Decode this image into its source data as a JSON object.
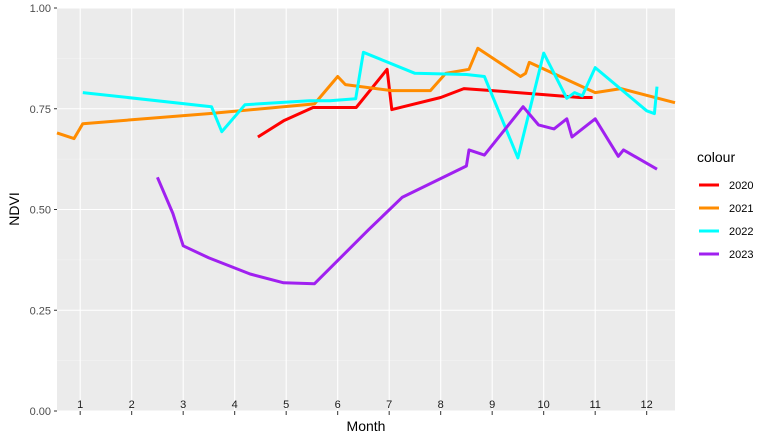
{
  "chart_data": {
    "type": "line",
    "xlabel": "Month",
    "ylabel": "NDVI",
    "xlim": [
      0.55,
      12.55
    ],
    "ylim": [
      0,
      1
    ],
    "y_ticks": [
      "0.00",
      "0.25",
      "0.50",
      "0.75",
      "1.00"
    ],
    "y_tick_values": [
      0,
      0.25,
      0.5,
      0.75,
      1.0
    ],
    "months": [
      "1",
      "2",
      "3",
      "4",
      "5",
      "6",
      "7",
      "8",
      "9",
      "10",
      "11",
      "12"
    ],
    "grid": true,
    "legend_title": "colour",
    "legend_position": "right",
    "series": [
      {
        "name": "2020",
        "color": "#ff0000",
        "x": [
          4.45,
          4.95,
          5.52,
          6.36,
          6.96,
          7.05,
          8.0,
          8.45,
          9.0,
          10.0,
          10.7,
          10.95
        ],
        "y": [
          0.68,
          0.72,
          0.753,
          0.753,
          0.848,
          0.748,
          0.778,
          0.8,
          0.795,
          0.785,
          0.778,
          0.778
        ]
      },
      {
        "name": "2021",
        "color": "#ff8c00",
        "x": [
          0.55,
          0.88,
          1.05,
          3.5,
          5.55,
          6.0,
          6.15,
          7.05,
          7.8,
          8.1,
          8.55,
          8.72,
          9.55,
          9.65,
          9.72,
          11.0,
          11.5,
          12.55
        ],
        "y": [
          0.69,
          0.676,
          0.713,
          0.738,
          0.762,
          0.83,
          0.81,
          0.795,
          0.795,
          0.838,
          0.848,
          0.9,
          0.83,
          0.838,
          0.865,
          0.79,
          0.8,
          0.765
        ]
      },
      {
        "name": "2022",
        "color": "#00ffff",
        "x": [
          1.05,
          3.55,
          3.75,
          4.2,
          5.45,
          5.85,
          6.35,
          6.5,
          7.5,
          8.5,
          8.85,
          9.5,
          10.0,
          10.45,
          10.6,
          10.75,
          11.0,
          12.0,
          12.15,
          12.2
        ],
        "y": [
          0.79,
          0.755,
          0.693,
          0.76,
          0.77,
          0.77,
          0.775,
          0.89,
          0.838,
          0.835,
          0.83,
          0.628,
          0.888,
          0.776,
          0.79,
          0.782,
          0.852,
          0.745,
          0.738,
          0.805
        ]
      },
      {
        "name": "2023",
        "color": "#a020f0",
        "x": [
          2.5,
          2.8,
          3.0,
          3.5,
          4.3,
          4.95,
          5.55,
          6.6,
          7.25,
          8.5,
          8.55,
          8.85,
          9.6,
          9.9,
          10.2,
          10.45,
          10.55,
          11.0,
          11.45,
          11.55,
          12.2
        ],
        "y": [
          0.58,
          0.49,
          0.41,
          0.38,
          0.34,
          0.318,
          0.316,
          0.45,
          0.53,
          0.608,
          0.648,
          0.635,
          0.755,
          0.71,
          0.7,
          0.725,
          0.68,
          0.725,
          0.632,
          0.648,
          0.6
        ]
      }
    ]
  }
}
